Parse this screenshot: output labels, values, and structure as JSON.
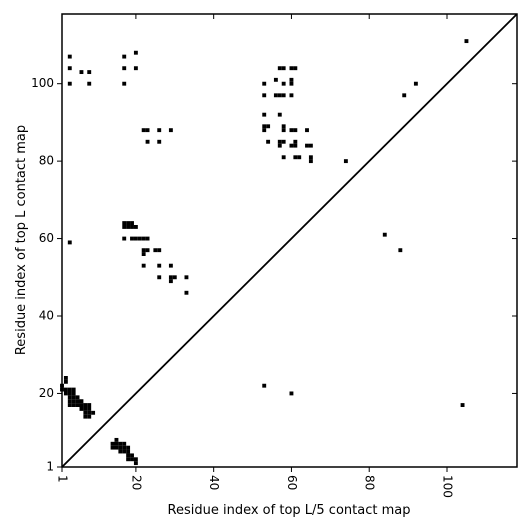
{
  "chart_data": {
    "type": "scatter",
    "title": "",
    "xlabel": "Residue index of top L/5 contact map",
    "ylabel": "Residue index of top L contact map",
    "xlim": [
      1,
      118
    ],
    "ylim": [
      1,
      118
    ],
    "x_ticks": [
      1,
      20,
      40,
      60,
      80,
      100
    ],
    "y_ticks": [
      1,
      20,
      40,
      60,
      80,
      100
    ],
    "x_tick_labels": [
      "1",
      "20",
      "40",
      "60",
      "80",
      "100"
    ],
    "y_tick_labels": [
      "1",
      "20",
      "40",
      "60",
      "80",
      "100"
    ],
    "x_tick_rotation_deg": -90,
    "grid": false,
    "legend": "none",
    "colors": {
      "marker": "#000000",
      "diagonal": "#000000",
      "frame": "#000000",
      "background": "#ffffff"
    },
    "diagonal": {
      "from": [
        1,
        1
      ],
      "to": [
        118,
        118
      ]
    },
    "series": [
      {
        "name": "",
        "points": [
          [
            3,
            107
          ],
          [
            3,
            104
          ],
          [
            3,
            100
          ],
          [
            6,
            103
          ],
          [
            8,
            103
          ],
          [
            8,
            100
          ],
          [
            17,
            107
          ],
          [
            17,
            104
          ],
          [
            17,
            100
          ],
          [
            20,
            108
          ],
          [
            20,
            104
          ],
          [
            22,
            88
          ],
          [
            23,
            88
          ],
          [
            26,
            88
          ],
          [
            29,
            88
          ],
          [
            23,
            85
          ],
          [
            26,
            85
          ],
          [
            17,
            64
          ],
          [
            18,
            64
          ],
          [
            19,
            64
          ],
          [
            17,
            63
          ],
          [
            18,
            63
          ],
          [
            19,
            63
          ],
          [
            20,
            63
          ],
          [
            3,
            59
          ],
          [
            17,
            60
          ],
          [
            19,
            60
          ],
          [
            20,
            60
          ],
          [
            21,
            60
          ],
          [
            22,
            60
          ],
          [
            23,
            60
          ],
          [
            22,
            57
          ],
          [
            23,
            57
          ],
          [
            25,
            57
          ],
          [
            26,
            57
          ],
          [
            22,
            56
          ],
          [
            22,
            53
          ],
          [
            26,
            53
          ],
          [
            29,
            53
          ],
          [
            26,
            50
          ],
          [
            29,
            50
          ],
          [
            30,
            50
          ],
          [
            33,
            50
          ],
          [
            29,
            49
          ],
          [
            33,
            46
          ],
          [
            57,
            104
          ],
          [
            58,
            104
          ],
          [
            60,
            104
          ],
          [
            61,
            104
          ],
          [
            56,
            101
          ],
          [
            60,
            101
          ],
          [
            53,
            100
          ],
          [
            58,
            100
          ],
          [
            60,
            100
          ],
          [
            53,
            97
          ],
          [
            56,
            97
          ],
          [
            57,
            97
          ],
          [
            58,
            97
          ],
          [
            60,
            97
          ],
          [
            53,
            92
          ],
          [
            57,
            92
          ],
          [
            53,
            89
          ],
          [
            54,
            89
          ],
          [
            58,
            89
          ],
          [
            53,
            88
          ],
          [
            58,
            88
          ],
          [
            60,
            88
          ],
          [
            61,
            88
          ],
          [
            64,
            88
          ],
          [
            54,
            85
          ],
          [
            57,
            85
          ],
          [
            58,
            85
          ],
          [
            61,
            85
          ],
          [
            57,
            84
          ],
          [
            60,
            84
          ],
          [
            61,
            84
          ],
          [
            64,
            84
          ],
          [
            65,
            84
          ],
          [
            58,
            81
          ],
          [
            61,
            81
          ],
          [
            62,
            81
          ],
          [
            65,
            81
          ],
          [
            65,
            80
          ],
          [
            74,
            80
          ],
          [
            92,
            100
          ],
          [
            89,
            97
          ],
          [
            84,
            61
          ],
          [
            88,
            57
          ],
          [
            105,
            111
          ],
          [
            53,
            22
          ],
          [
            60,
            20
          ],
          [
            104,
            17
          ],
          [
            1,
            22
          ],
          [
            1,
            21
          ],
          [
            2,
            24
          ],
          [
            2,
            23
          ],
          [
            2,
            21
          ],
          [
            2,
            20
          ],
          [
            3,
            21
          ],
          [
            3,
            20
          ],
          [
            3,
            19
          ],
          [
            3,
            18
          ],
          [
            3,
            17
          ],
          [
            4,
            21
          ],
          [
            4,
            20
          ],
          [
            4,
            19
          ],
          [
            4,
            18
          ],
          [
            4,
            17
          ],
          [
            5,
            19
          ],
          [
            5,
            18
          ],
          [
            5,
            17
          ],
          [
            6,
            18
          ],
          [
            6,
            17
          ],
          [
            6,
            16
          ],
          [
            7,
            17
          ],
          [
            7,
            16
          ],
          [
            7,
            15
          ],
          [
            7,
            14
          ],
          [
            8,
            17
          ],
          [
            8,
            16
          ],
          [
            8,
            15
          ],
          [
            8,
            14
          ],
          [
            9,
            15
          ],
          [
            14,
            7
          ],
          [
            14,
            6
          ],
          [
            15,
            8
          ],
          [
            15,
            7
          ],
          [
            15,
            6
          ],
          [
            16,
            7
          ],
          [
            16,
            6
          ],
          [
            16,
            5
          ],
          [
            17,
            7
          ],
          [
            17,
            6
          ],
          [
            17,
            5
          ],
          [
            18,
            6
          ],
          [
            18,
            5
          ],
          [
            18,
            4
          ],
          [
            18,
            3
          ],
          [
            19,
            4
          ],
          [
            19,
            3
          ],
          [
            20,
            3
          ],
          [
            20,
            2
          ]
        ]
      }
    ]
  }
}
